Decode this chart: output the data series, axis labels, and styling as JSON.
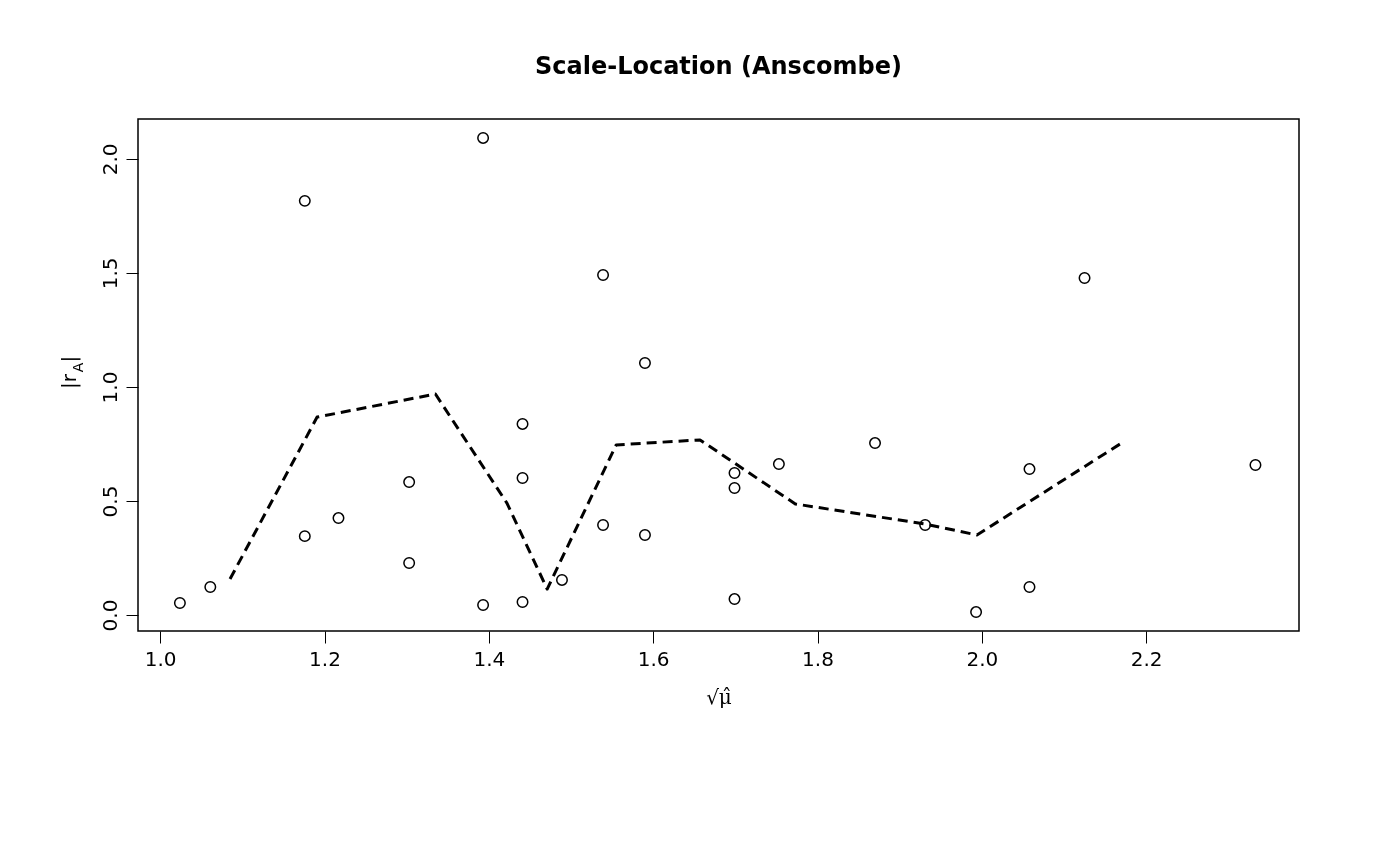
{
  "chart_data": {
    "type": "scatter",
    "title": "Scale-Location (Anscombe)",
    "xlabel": "√μ̂",
    "ylabel": "|r$_{A}$|",
    "xlim": [
      0.973,
      2.386
    ],
    "ylim": [
      -0.07,
      2.175
    ],
    "xticks": [
      {
        "value": 1,
        "label": "1.0"
      },
      {
        "value": 1.2,
        "label": "1.2"
      },
      {
        "value": 1.4,
        "label": "1.4"
      },
      {
        "value": 1.6,
        "label": "1.6"
      },
      {
        "value": 1.8,
        "label": "1.8"
      },
      {
        "value": 2,
        "label": "2.0"
      },
      {
        "value": 2.2,
        "label": "2.2"
      }
    ],
    "yticks": [
      {
        "value": 0,
        "label": "0.0"
      },
      0.5,
      {
        "value": 1,
        "label": "1.0"
      },
      1.5,
      {
        "value": 2,
        "label": "2.0"
      }
    ],
    "grid": false,
    "series": [
      {
        "color": "#000000",
        "marker": "circle",
        "x": [
          1.024,
          1.061,
          1.176,
          1.176,
          1.217,
          1.303,
          1.303,
          1.393,
          1.393,
          1.441,
          1.441,
          1.441,
          1.489,
          1.539,
          1.539,
          1.59,
          1.59,
          1.699,
          1.699,
          1.699,
          1.753,
          1.87,
          1.931,
          1.993,
          2.058,
          2.058,
          2.125,
          2.333
        ],
        "values": [
          0.053,
          0.123,
          1.816,
          0.346,
          0.425,
          0.583,
          0.228,
          2.092,
          0.044,
          0.838,
          0.601,
          0.057,
          0.154,
          1.491,
          0.395,
          1.105,
          0.351,
          0.623,
          0.557,
          0.07,
          0.662,
          0.754,
          0.395,
          0.013,
          0.64,
          0.123,
          1.478,
          0.658
        ]
      },
      {
        "type": "line",
        "color": "#000000",
        "line_style": "dashed",
        "marker": "none",
        "x": [
          1.085,
          1.191,
          1.335,
          1.422,
          1.471,
          1.555,
          1.657,
          1.773,
          1.931,
          1.994,
          2.17
        ],
        "values": [
          0.158,
          0.868,
          0.969,
          0.491,
          0.114,
          0.746,
          0.768,
          0.487,
          0.399,
          0.351,
          0.754
        ]
      }
    ]
  }
}
